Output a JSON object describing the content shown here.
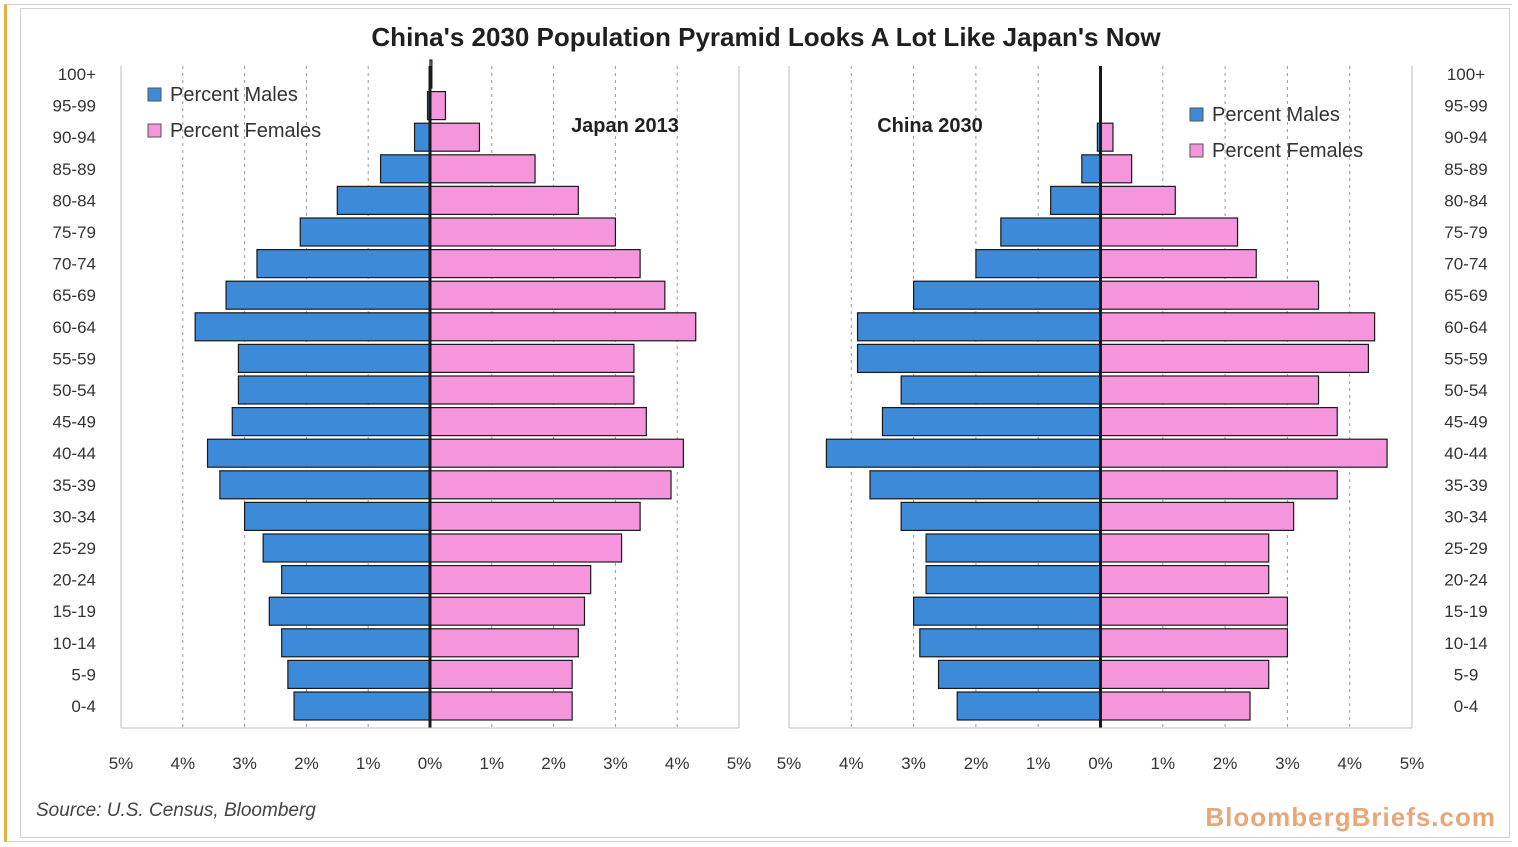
{
  "title": "China's 2030 Population Pyramid Looks A Lot Like Japan's Now",
  "source": "Source: U.S. Census, Bloomberg",
  "brand": "BloombergBriefs.com",
  "colors": {
    "males": "#3d8ad8",
    "females": "#f595dc",
    "bar_stroke": "#1a1a1a",
    "grid": "#9a9a9a"
  },
  "chart_data": [
    {
      "type": "bar",
      "orientation": "horizontal-pyramid",
      "title": "Japan 2013",
      "categories": [
        "0-4",
        "5-9",
        "10-14",
        "15-19",
        "20-24",
        "25-29",
        "30-34",
        "35-39",
        "40-44",
        "45-49",
        "50-54",
        "55-59",
        "60-64",
        "65-69",
        "70-74",
        "75-79",
        "80-84",
        "85-89",
        "90-94",
        "95-99",
        "100+"
      ],
      "series": [
        {
          "name": "Percent Males",
          "values": [
            2.2,
            2.3,
            2.4,
            2.6,
            2.4,
            2.7,
            3.0,
            3.4,
            3.6,
            3.2,
            3.1,
            3.1,
            3.8,
            3.3,
            2.8,
            2.1,
            1.5,
            0.8,
            0.25,
            0.04,
            0.0
          ]
        },
        {
          "name": "Percent Females",
          "values": [
            2.3,
            2.3,
            2.4,
            2.5,
            2.6,
            3.1,
            3.4,
            3.9,
            4.1,
            3.5,
            3.3,
            3.3,
            4.3,
            3.8,
            3.4,
            3.0,
            2.4,
            1.7,
            0.8,
            0.25,
            0.03
          ]
        }
      ],
      "xlim": [
        -5,
        5
      ],
      "xticks": [
        "5%",
        "4%",
        "3%",
        "2%",
        "1%",
        "0%",
        "1%",
        "2%",
        "3%",
        "4%",
        "5%"
      ],
      "legend": [
        "Percent Males",
        "Percent Females"
      ],
      "legend_position": "top-left",
      "grid": true
    },
    {
      "type": "bar",
      "orientation": "horizontal-pyramid",
      "title": "China 2030",
      "categories": [
        "0-4",
        "5-9",
        "10-14",
        "15-19",
        "20-24",
        "25-29",
        "30-34",
        "35-39",
        "40-44",
        "45-49",
        "50-54",
        "55-59",
        "60-64",
        "65-69",
        "70-74",
        "75-79",
        "80-84",
        "85-89",
        "90-94",
        "95-99",
        "100+"
      ],
      "series": [
        {
          "name": "Percent Males",
          "values": [
            2.3,
            2.6,
            2.9,
            3.0,
            2.8,
            2.8,
            3.2,
            3.7,
            4.4,
            3.5,
            3.2,
            3.9,
            3.9,
            3.0,
            2.0,
            1.6,
            0.8,
            0.3,
            0.05,
            0.0,
            0.0
          ]
        },
        {
          "name": "Percent Females",
          "values": [
            2.4,
            2.7,
            3.0,
            3.0,
            2.7,
            2.7,
            3.1,
            3.8,
            4.6,
            3.8,
            3.5,
            4.3,
            4.4,
            3.5,
            2.5,
            2.2,
            1.2,
            0.5,
            0.2,
            0.0,
            0.0
          ]
        }
      ],
      "xlim": [
        -5,
        5
      ],
      "xticks": [
        "5%",
        "4%",
        "3%",
        "2%",
        "1%",
        "0%",
        "1%",
        "2%",
        "3%",
        "4%",
        "5%"
      ],
      "legend": [
        "Percent Males",
        "Percent Females"
      ],
      "legend_position": "top-right",
      "grid": true
    }
  ]
}
